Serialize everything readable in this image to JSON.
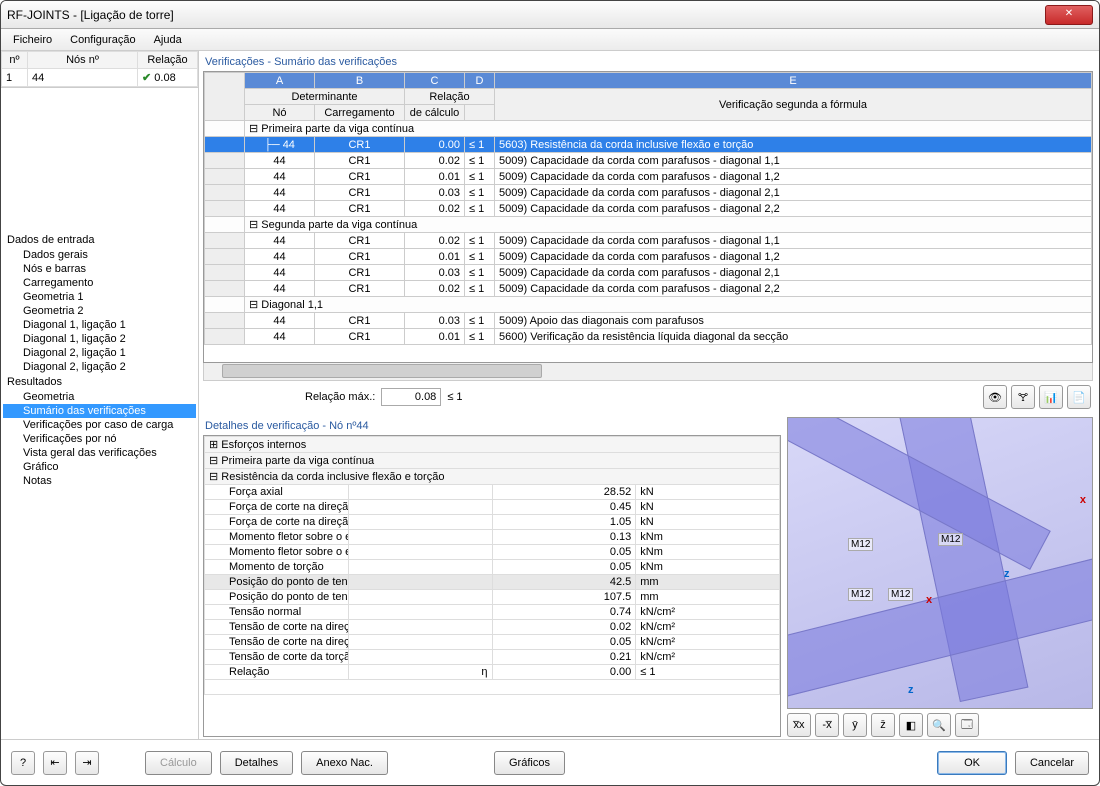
{
  "window": {
    "title": "RF-JOINTS - [Ligação de torre]"
  },
  "menu": {
    "file": "Ficheiro",
    "config": "Configuração",
    "help": "Ajuda"
  },
  "nodes_table": {
    "headers": {
      "n": "nº",
      "nodes": "Nós nº",
      "ratio": "Relação"
    },
    "row": {
      "n": "1",
      "nodes": "44",
      "ratio": "0.08"
    }
  },
  "tree": {
    "input_header": "Dados de entrada",
    "input_items": [
      "Dados gerais",
      "Nós e barras",
      "Carregamento",
      "Geometria 1",
      "Geometria 2",
      "Diagonal 1, ligação 1",
      "Diagonal 1, ligação 2",
      "Diagonal 2, ligação 1",
      "Diagonal 2, ligação 2"
    ],
    "results_header": "Resultados",
    "results_items": [
      "Geometria",
      "Sumário das verificações",
      "Verificações por caso de carga",
      "Verificações por nó",
      "Vista geral das verificações",
      "Gráfico",
      "Notas"
    ],
    "selected": "Sumário das verificações"
  },
  "main_panel": {
    "title": "Verificações - Sumário das verificações",
    "col_letters": [
      "A",
      "B",
      "C",
      "D",
      "E"
    ],
    "headers": {
      "det": "Determinante",
      "no": "Nó",
      "carreg": "Carregamento",
      "relacao": "Relação",
      "relcalc": "de cálculo",
      "formula": "Verificação segunda a fórmula"
    },
    "groups": [
      {
        "label": "Primeira parte da viga contínua",
        "rows": [
          {
            "no": "44",
            "cr": "CR1",
            "val": "0.00",
            "cmp": "≤ 1",
            "desc": "5603) Resistência da corda inclusive flexão e torção",
            "sel": true
          },
          {
            "no": "44",
            "cr": "CR1",
            "val": "0.02",
            "cmp": "≤ 1",
            "desc": "5009) Capacidade da corda com parafusos - diagonal 1,1"
          },
          {
            "no": "44",
            "cr": "CR1",
            "val": "0.01",
            "cmp": "≤ 1",
            "desc": "5009) Capacidade da corda com parafusos - diagonal 1,2"
          },
          {
            "no": "44",
            "cr": "CR1",
            "val": "0.03",
            "cmp": "≤ 1",
            "desc": "5009) Capacidade da corda com parafusos - diagonal 2,1"
          },
          {
            "no": "44",
            "cr": "CR1",
            "val": "0.02",
            "cmp": "≤ 1",
            "desc": "5009) Capacidade da corda com parafusos - diagonal 2,2"
          }
        ]
      },
      {
        "label": "Segunda parte da viga contínua",
        "rows": [
          {
            "no": "44",
            "cr": "CR1",
            "val": "0.02",
            "cmp": "≤ 1",
            "desc": "5009) Capacidade da corda com parafusos - diagonal 1,1"
          },
          {
            "no": "44",
            "cr": "CR1",
            "val": "0.01",
            "cmp": "≤ 1",
            "desc": "5009) Capacidade da corda com parafusos - diagonal 1,2"
          },
          {
            "no": "44",
            "cr": "CR1",
            "val": "0.03",
            "cmp": "≤ 1",
            "desc": "5009) Capacidade da corda com parafusos - diagonal 2,1"
          },
          {
            "no": "44",
            "cr": "CR1",
            "val": "0.02",
            "cmp": "≤ 1",
            "desc": "5009) Capacidade da corda com parafusos - diagonal 2,2"
          }
        ]
      },
      {
        "label": "Diagonal 1,1",
        "rows": [
          {
            "no": "44",
            "cr": "CR1",
            "val": "0.03",
            "cmp": "≤ 1",
            "desc": "5009) Apoio das diagonais com parafusos"
          },
          {
            "no": "44",
            "cr": "CR1",
            "val": "0.01",
            "cmp": "≤ 1",
            "desc": "5600) Verificação da resistência líquida diagonal da secção"
          }
        ]
      }
    ]
  },
  "ratio_bar": {
    "label": "Relação máx.:",
    "value": "0.08",
    "cmp": "≤ 1"
  },
  "details": {
    "title": "Detalhes de verificação  -  Nó nº44",
    "groups": [
      {
        "type": "grp",
        "label": "Esforços internos",
        "pre": "⊞"
      },
      {
        "type": "grp",
        "label": "Primeira parte da viga contínua",
        "pre": "⊟"
      },
      {
        "type": "sub",
        "label": "Resistência da corda inclusive flexão e torção",
        "pre": "⊟"
      }
    ],
    "rows": [
      {
        "k": "Força axial",
        "v": "28.52",
        "u": "kN"
      },
      {
        "k": "Força de corte na direção Y",
        "v": "0.45",
        "u": "kN"
      },
      {
        "k": "Força de corte na direção Z",
        "v": "1.05",
        "u": "kN"
      },
      {
        "k": "Momento fletor sobre o eixo Y",
        "v": "0.13",
        "u": "kNm"
      },
      {
        "k": "Momento fletor sobre o eixo Z",
        "v": "0.05",
        "u": "kNm"
      },
      {
        "k": "Momento de torção",
        "v": "0.05",
        "u": "kNm"
      },
      {
        "k": "Posição do ponto de tensão na direção Y",
        "v": "42.5",
        "u": "mm",
        "hl": true
      },
      {
        "k": "Posição do ponto de tensão na direção Z",
        "v": "107.5",
        "u": "mm"
      },
      {
        "k": "Tensão normal",
        "v": "0.74",
        "u": "kN/cm²"
      },
      {
        "k": "Tensão de corte na direção Y",
        "v": "0.02",
        "u": "kN/cm²"
      },
      {
        "k": "Tensão de corte na direção Z",
        "v": "0.05",
        "u": "kN/cm²"
      },
      {
        "k": "Tensão de corte da torção",
        "v": "0.21",
        "u": "kN/cm²"
      },
      {
        "k": "Relação",
        "s": "η",
        "v": "0.00",
        "cmp": "≤ 1"
      }
    ]
  },
  "preview": {
    "labels": [
      "M12",
      "M12",
      "M12",
      "M12"
    ],
    "axes": {
      "x": "x",
      "z": "z"
    },
    "beam_color": "#9a9ae0"
  },
  "buttons": {
    "calc": "Cálculo",
    "details": "Detalhes",
    "annex": "Anexo Nac.",
    "graphics": "Gráficos",
    "ok": "OK",
    "cancel": "Cancelar"
  }
}
